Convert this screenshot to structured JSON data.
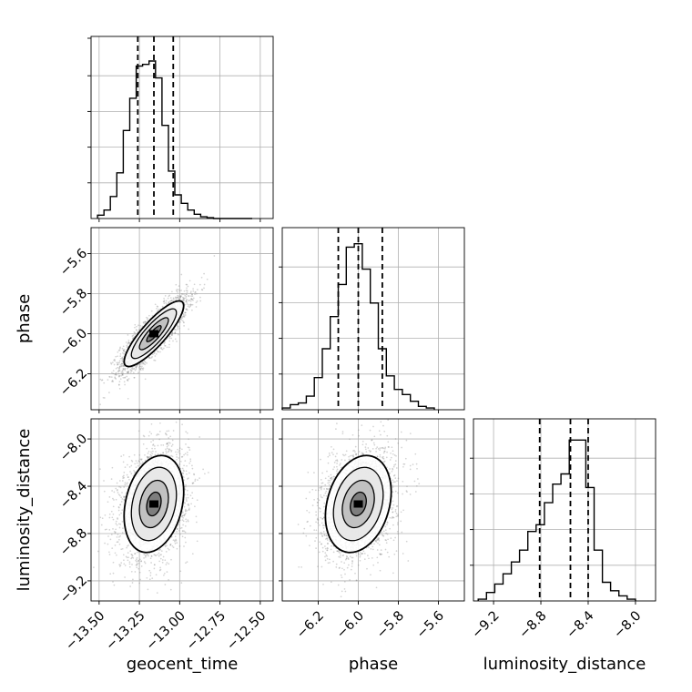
{
  "chart_data": {
    "type": "corner",
    "parameters": [
      "geocent_time",
      "phase",
      "luminosity_distance"
    ],
    "quantile_levels": [
      0.16,
      0.5,
      0.84
    ],
    "grid": true,
    "colors": {
      "line": "#000000",
      "grid": "#b0b0b0",
      "scatter": "#808080"
    },
    "tick_labels": {
      "geocent_time": [
        "−13.50",
        "−13.25",
        "−13.00",
        "−12.75",
        "−12.50"
      ],
      "phase": [
        "−6.2",
        "−6.0",
        "−5.8",
        "−5.6"
      ],
      "luminosity_distance": [
        "−9.2",
        "−8.8",
        "−8.4",
        "−8.0"
      ],
      "phase_row": [
        "−5.6",
        "−5.8",
        "−6.0",
        "−6.2"
      ],
      "luminosity_distance_row": [
        "−8.0",
        "−8.4",
        "−8.8",
        "−9.2"
      ]
    },
    "tick_values": {
      "geocent_time": [
        -13.5,
        -13.25,
        -13.0,
        -12.75,
        -12.5
      ],
      "phase": [
        -6.2,
        -6.0,
        -5.8,
        -5.6
      ],
      "luminosity_distance": [
        -9.2,
        -8.8,
        -8.4,
        -8.0
      ]
    },
    "ranges": {
      "geocent_time": [
        -13.55,
        -12.42
      ],
      "phase": [
        -6.38,
        -5.47
      ],
      "luminosity_distance": [
        -9.37,
        -7.83
      ]
    },
    "diagonals": [
      {
        "param": "geocent_time",
        "hist_edges": [
          -13.51,
          -13.47,
          -13.43,
          -13.39,
          -13.35,
          -13.31,
          -13.27,
          -13.23,
          -13.19,
          -13.15,
          -13.11,
          -13.07,
          -13.03,
          -12.99,
          -12.95,
          -12.91,
          -12.87,
          -12.83,
          -12.79,
          -12.75,
          -12.71,
          -12.67,
          -12.63,
          -12.59,
          -12.55
        ],
        "hist_counts": [
          0.02,
          0.05,
          0.13,
          0.27,
          0.52,
          0.71,
          0.9,
          0.91,
          0.93,
          0.83,
          0.55,
          0.28,
          0.14,
          0.09,
          0.05,
          0.025,
          0.01,
          0.005,
          0.0,
          0.0,
          0.0,
          0.0,
          0.0,
          0.0
        ],
        "quantiles": [
          -13.26,
          -13.16,
          -13.04
        ]
      },
      {
        "param": "phase",
        "hist_edges": [
          -6.38,
          -6.34,
          -6.3,
          -6.26,
          -6.22,
          -6.18,
          -6.14,
          -6.1,
          -6.06,
          -6.02,
          -5.98,
          -5.94,
          -5.9,
          -5.86,
          -5.82,
          -5.78,
          -5.74,
          -5.7,
          -5.66,
          -5.62
        ],
        "hist_counts": [
          0.01,
          0.03,
          0.04,
          0.08,
          0.19,
          0.36,
          0.55,
          0.74,
          0.96,
          0.98,
          0.83,
          0.63,
          0.36,
          0.2,
          0.12,
          0.09,
          0.05,
          0.02,
          0.01
        ],
        "quantiles": [
          -6.1,
          -6.0,
          -5.88
        ]
      },
      {
        "param": "luminosity_distance",
        "hist_edges": [
          -9.33,
          -9.26,
          -9.19,
          -9.12,
          -9.05,
          -8.98,
          -8.91,
          -8.84,
          -8.77,
          -8.7,
          -8.63,
          -8.56,
          -8.49,
          -8.42,
          -8.35,
          -8.28,
          -8.21,
          -8.14,
          -8.07,
          -8.0
        ],
        "hist_counts": [
          0.01,
          0.05,
          0.1,
          0.16,
          0.23,
          0.3,
          0.41,
          0.45,
          0.58,
          0.69,
          0.75,
          0.95,
          0.95,
          0.67,
          0.3,
          0.11,
          0.06,
          0.03,
          0.01
        ],
        "quantiles": [
          -8.81,
          -8.55,
          -8.4
        ]
      }
    ],
    "pairs": [
      {
        "x": "geocent_time",
        "y": "phase",
        "center": [
          -13.16,
          -6.0
        ],
        "sigma": [
          0.09,
          0.08
        ],
        "rho": 0.85
      },
      {
        "x": "geocent_time",
        "y": "luminosity_distance",
        "center": [
          -13.16,
          -8.55
        ],
        "sigma": [
          0.09,
          0.2
        ],
        "rho": 0.25
      },
      {
        "x": "phase",
        "y": "luminosity_distance",
        "center": [
          -6.0,
          -8.55
        ],
        "sigma": [
          0.08,
          0.2
        ],
        "rho": 0.25
      }
    ]
  }
}
